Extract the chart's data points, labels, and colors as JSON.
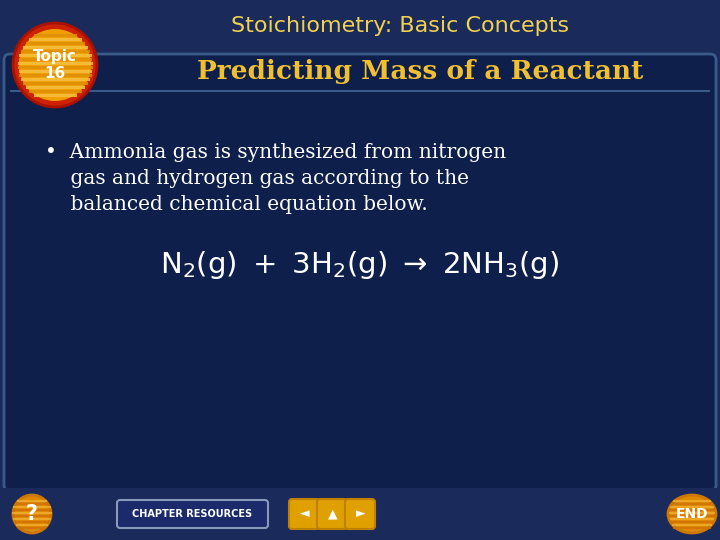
{
  "bg_outer": "#1a2a5a",
  "bg_inner": "#0d1f4a",
  "title_text": "Stoichiometry: Basic Concepts",
  "title_color": "#f0d050",
  "subtitle_text": "Predicting Mass of a Reactant",
  "subtitle_color": "#f0c030",
  "topic_label": "Topic\n16",
  "topic_circle_fill": "#f0a000",
  "topic_circle_border": "#cc2200",
  "topic_text_color": "#ffffff",
  "bullet_line1": "•  Ammonia gas is synthesized from nitrogen",
  "bullet_line2": "    gas and hydrogen gas according to the",
  "bullet_line3": "    balanced chemical equation below.",
  "bullet_color": "#ffffff",
  "equation_color": "#ffffff",
  "footer_text": "CHAPTER RESOURCES",
  "footer_bg": "#1a2a6a",
  "footer_btn_color": "#f0a000",
  "inner_box_border": "#3a5a8a",
  "header_bg": "#1a2a5a"
}
